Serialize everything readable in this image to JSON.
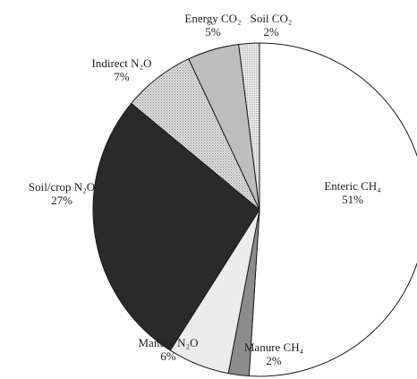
{
  "chart_data": {
    "type": "pie",
    "start": "top, clockwise",
    "slices": [
      {
        "label": "Enteric CH₄",
        "value": 51,
        "pct": "51%",
        "fill": "#ffffff",
        "pattern": "none"
      },
      {
        "label": "Manure CH₄",
        "value": 2,
        "pct": "2%",
        "fill": "#8c8c8c",
        "pattern": "none"
      },
      {
        "label": "Manure N₂O",
        "value": 6,
        "pct": "6%",
        "fill": "#ececec",
        "pattern": "none"
      },
      {
        "label": "Soil/crop N₂O",
        "value": 27,
        "pct": "27%",
        "fill": "#2a2a2a",
        "pattern": "none"
      },
      {
        "label": "Indirect N₂O",
        "value": 7,
        "pct": "7%",
        "fill": "#d2d2d2",
        "pattern": "dots"
      },
      {
        "label": "Energy CO₂",
        "value": 5,
        "pct": "5%",
        "fill": "#bdbdbd",
        "pattern": "none"
      },
      {
        "label": "Soil CO₂",
        "value": 2,
        "pct": "2%",
        "fill": "#e2e2e2",
        "pattern": "stipple"
      }
    ]
  }
}
